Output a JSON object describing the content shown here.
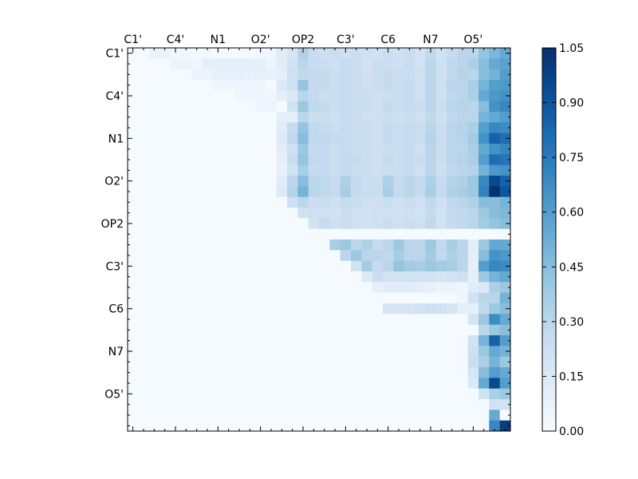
{
  "chart_data": {
    "type": "heatmap",
    "title": "",
    "xlabel": "",
    "ylabel": "",
    "grid": false,
    "x_ticks_position": "top",
    "categories": [
      "C1'",
      "C4'",
      "N1",
      "O2'",
      "OP2",
      "C3'",
      "C6",
      "N7",
      "O5'"
    ],
    "y_categories": [
      "C1'",
      "C4'",
      "N1",
      "O2'",
      "OP2",
      "C3'",
      "C6",
      "N7",
      "O5'"
    ],
    "n_rows": 36,
    "n_cols": 36,
    "label_every": 4,
    "colormap": "Blues",
    "colormap_stops": [
      "#f7fbff",
      "#deebf7",
      "#c6dbef",
      "#9ecae1",
      "#6baed6",
      "#4292c6",
      "#2171b5",
      "#08519c",
      "#08306b"
    ],
    "colorbar": {
      "min": 0.0,
      "max": 1.05,
      "ticks": [
        "1.05",
        "0.90",
        "0.75",
        "0.60",
        "0.45",
        "0.30",
        "0.15",
        "0.00"
      ],
      "tick_values": [
        1.05,
        0.9,
        0.75,
        0.6,
        0.45,
        0.3,
        0.15,
        0.0
      ],
      "placement": "right"
    },
    "matrix": [
      [
        0.01,
        0.01,
        0.06,
        0.06,
        0.03,
        0.03,
        0.02,
        0.03,
        0.02,
        0.02,
        0.02,
        0.02,
        0.04,
        0.04,
        0.12,
        0.18,
        0.34,
        0.25,
        0.23,
        0.24,
        0.22,
        0.24,
        0.22,
        0.2,
        0.24,
        0.22,
        0.25,
        0.2,
        0.28,
        0.2,
        0.26,
        0.3,
        0.3,
        0.42,
        0.48,
        0.55
      ],
      [
        0.01,
        0.01,
        0.01,
        0.01,
        0.06,
        0.06,
        0.04,
        0.1,
        0.1,
        0.1,
        0.1,
        0.1,
        0.1,
        0.06,
        0.12,
        0.2,
        0.3,
        0.25,
        0.24,
        0.22,
        0.26,
        0.24,
        0.2,
        0.24,
        0.24,
        0.22,
        0.24,
        0.2,
        0.3,
        0.22,
        0.28,
        0.3,
        0.35,
        0.45,
        0.55,
        0.58
      ],
      [
        0.01,
        0.01,
        0.01,
        0.01,
        0.01,
        0.01,
        0.06,
        0.06,
        0.1,
        0.1,
        0.1,
        0.08,
        0.1,
        0.08,
        0.1,
        0.22,
        0.28,
        0.26,
        0.26,
        0.24,
        0.26,
        0.24,
        0.22,
        0.24,
        0.26,
        0.24,
        0.25,
        0.22,
        0.3,
        0.22,
        0.28,
        0.32,
        0.3,
        0.45,
        0.5,
        0.6
      ],
      [
        0.01,
        0.01,
        0.01,
        0.01,
        0.01,
        0.01,
        0.01,
        0.01,
        0.04,
        0.04,
        0.04,
        0.04,
        0.04,
        0.02,
        0.15,
        0.22,
        0.42,
        0.26,
        0.26,
        0.24,
        0.26,
        0.24,
        0.22,
        0.24,
        0.26,
        0.24,
        0.26,
        0.22,
        0.3,
        0.22,
        0.3,
        0.3,
        0.35,
        0.5,
        0.6,
        0.62
      ],
      [
        0.01,
        0.01,
        0.01,
        0.01,
        0.01,
        0.01,
        0.01,
        0.01,
        0.01,
        0.01,
        0.04,
        0.04,
        0.04,
        0.04,
        0.1,
        0.15,
        0.3,
        0.26,
        0.24,
        0.24,
        0.26,
        0.24,
        0.24,
        0.22,
        0.24,
        0.24,
        0.26,
        0.22,
        0.3,
        0.22,
        0.28,
        0.3,
        0.35,
        0.55,
        0.62,
        0.65
      ],
      [
        0.01,
        0.01,
        0.01,
        0.01,
        0.01,
        0.01,
        0.01,
        0.01,
        0.01,
        0.01,
        0.01,
        0.01,
        0.04,
        0.05,
        0.01,
        0.2,
        0.4,
        0.28,
        0.26,
        0.24,
        0.26,
        0.24,
        0.24,
        0.22,
        0.26,
        0.24,
        0.26,
        0.24,
        0.3,
        0.24,
        0.3,
        0.32,
        0.3,
        0.45,
        0.65,
        0.7
      ],
      [
        0.01,
        0.01,
        0.01,
        0.01,
        0.01,
        0.01,
        0.01,
        0.01,
        0.01,
        0.01,
        0.01,
        0.01,
        0.01,
        0.01,
        0.1,
        0.1,
        0.3,
        0.24,
        0.24,
        0.22,
        0.26,
        0.24,
        0.22,
        0.22,
        0.24,
        0.22,
        0.24,
        0.22,
        0.28,
        0.22,
        0.28,
        0.3,
        0.3,
        0.5,
        0.55,
        0.6
      ],
      [
        0.01,
        0.01,
        0.01,
        0.01,
        0.01,
        0.01,
        0.01,
        0.01,
        0.01,
        0.01,
        0.01,
        0.01,
        0.01,
        0.01,
        0.12,
        0.26,
        0.42,
        0.28,
        0.26,
        0.24,
        0.26,
        0.24,
        0.24,
        0.22,
        0.26,
        0.24,
        0.26,
        0.24,
        0.3,
        0.24,
        0.3,
        0.32,
        0.35,
        0.6,
        0.7,
        0.68
      ],
      [
        0.01,
        0.01,
        0.01,
        0.01,
        0.01,
        0.01,
        0.01,
        0.01,
        0.01,
        0.01,
        0.01,
        0.01,
        0.01,
        0.01,
        0.14,
        0.28,
        0.45,
        0.28,
        0.28,
        0.26,
        0.26,
        0.24,
        0.24,
        0.22,
        0.26,
        0.24,
        0.26,
        0.24,
        0.32,
        0.24,
        0.3,
        0.32,
        0.38,
        0.65,
        0.85,
        0.8
      ],
      [
        0.01,
        0.01,
        0.01,
        0.01,
        0.01,
        0.01,
        0.01,
        0.01,
        0.01,
        0.01,
        0.01,
        0.01,
        0.01,
        0.01,
        0.12,
        0.22,
        0.4,
        0.26,
        0.26,
        0.24,
        0.26,
        0.24,
        0.24,
        0.22,
        0.24,
        0.24,
        0.26,
        0.22,
        0.3,
        0.24,
        0.3,
        0.3,
        0.35,
        0.55,
        0.65,
        0.7
      ],
      [
        0.01,
        0.01,
        0.01,
        0.01,
        0.01,
        0.01,
        0.01,
        0.01,
        0.01,
        0.01,
        0.01,
        0.01,
        0.01,
        0.01,
        0.1,
        0.24,
        0.42,
        0.28,
        0.26,
        0.24,
        0.26,
        0.26,
        0.24,
        0.22,
        0.26,
        0.24,
        0.26,
        0.24,
        0.3,
        0.24,
        0.3,
        0.32,
        0.35,
        0.6,
        0.8,
        0.78
      ],
      [
        0.01,
        0.01,
        0.01,
        0.01,
        0.01,
        0.01,
        0.01,
        0.01,
        0.01,
        0.01,
        0.01,
        0.01,
        0.01,
        0.01,
        0.08,
        0.2,
        0.36,
        0.26,
        0.26,
        0.24,
        0.26,
        0.24,
        0.24,
        0.22,
        0.24,
        0.24,
        0.26,
        0.22,
        0.3,
        0.22,
        0.28,
        0.3,
        0.32,
        0.5,
        0.62,
        0.65
      ],
      [
        0.01,
        0.01,
        0.01,
        0.01,
        0.01,
        0.01,
        0.01,
        0.01,
        0.01,
        0.01,
        0.01,
        0.01,
        0.01,
        0.01,
        0.12,
        0.3,
        0.45,
        0.3,
        0.28,
        0.26,
        0.34,
        0.26,
        0.24,
        0.24,
        0.34,
        0.26,
        0.3,
        0.26,
        0.34,
        0.26,
        0.32,
        0.34,
        0.4,
        0.7,
        0.95,
        0.85
      ],
      [
        0.01,
        0.01,
        0.01,
        0.01,
        0.01,
        0.01,
        0.01,
        0.01,
        0.01,
        0.01,
        0.01,
        0.01,
        0.01,
        0.01,
        0.14,
        0.32,
        0.5,
        0.3,
        0.28,
        0.26,
        0.36,
        0.26,
        0.24,
        0.24,
        0.36,
        0.26,
        0.3,
        0.26,
        0.36,
        0.26,
        0.34,
        0.36,
        0.4,
        0.72,
        1.05,
        0.9
      ],
      [
        0.01,
        0.01,
        0.01,
        0.01,
        0.01,
        0.01,
        0.01,
        0.01,
        0.01,
        0.01,
        0.01,
        0.01,
        0.01,
        0.01,
        0.01,
        0.22,
        0.3,
        0.24,
        0.24,
        0.22,
        0.26,
        0.24,
        0.22,
        0.22,
        0.24,
        0.22,
        0.24,
        0.22,
        0.28,
        0.22,
        0.28,
        0.3,
        0.34,
        0.45,
        0.45,
        0.5
      ],
      [
        0.01,
        0.01,
        0.01,
        0.01,
        0.01,
        0.01,
        0.01,
        0.01,
        0.01,
        0.01,
        0.01,
        0.01,
        0.01,
        0.01,
        0.01,
        0.01,
        0.2,
        0.22,
        0.22,
        0.2,
        0.24,
        0.22,
        0.2,
        0.22,
        0.22,
        0.2,
        0.22,
        0.2,
        0.26,
        0.2,
        0.26,
        0.28,
        0.3,
        0.4,
        0.45,
        0.48
      ],
      [
        0.01,
        0.01,
        0.01,
        0.01,
        0.01,
        0.01,
        0.01,
        0.01,
        0.01,
        0.01,
        0.01,
        0.01,
        0.01,
        0.01,
        0.01,
        0.01,
        0.01,
        0.2,
        0.26,
        0.22,
        0.24,
        0.22,
        0.2,
        0.22,
        0.24,
        0.22,
        0.24,
        0.22,
        0.28,
        0.2,
        0.26,
        0.28,
        0.3,
        0.38,
        0.42,
        0.45
      ],
      [
        0.01,
        0.01,
        0.01,
        0.01,
        0.01,
        0.01,
        0.01,
        0.01,
        0.01,
        0.01,
        0.01,
        0.01,
        0.01,
        0.01,
        0.01,
        0.01,
        0.01,
        0.01,
        0.01,
        0.01,
        0.01,
        0.01,
        0.01,
        0.01,
        0.01,
        0.01,
        0.01,
        0.01,
        0.01,
        0.01,
        0.01,
        0.01,
        0.01,
        0.01,
        0.01,
        0.01
      ],
      [
        0.01,
        0.01,
        0.01,
        0.01,
        0.01,
        0.01,
        0.01,
        0.01,
        0.01,
        0.01,
        0.01,
        0.01,
        0.01,
        0.01,
        0.01,
        0.01,
        0.01,
        0.01,
        0.01,
        0.36,
        0.4,
        0.3,
        0.34,
        0.26,
        0.3,
        0.4,
        0.3,
        0.3,
        0.4,
        0.28,
        0.36,
        0.3,
        0.1,
        0.4,
        0.55,
        0.55
      ],
      [
        0.01,
        0.01,
        0.01,
        0.01,
        0.01,
        0.01,
        0.01,
        0.01,
        0.01,
        0.01,
        0.01,
        0.01,
        0.01,
        0.01,
        0.01,
        0.01,
        0.01,
        0.01,
        0.01,
        0.01,
        0.3,
        0.4,
        0.3,
        0.3,
        0.28,
        0.36,
        0.3,
        0.3,
        0.38,
        0.28,
        0.34,
        0.3,
        0.1,
        0.45,
        0.65,
        0.62
      ],
      [
        0.01,
        0.01,
        0.01,
        0.01,
        0.01,
        0.01,
        0.01,
        0.01,
        0.01,
        0.01,
        0.01,
        0.01,
        0.01,
        0.01,
        0.01,
        0.01,
        0.01,
        0.01,
        0.01,
        0.01,
        0.01,
        0.2,
        0.38,
        0.26,
        0.3,
        0.42,
        0.38,
        0.36,
        0.4,
        0.38,
        0.36,
        0.3,
        0.1,
        0.6,
        0.7,
        0.68
      ],
      [
        0.01,
        0.01,
        0.01,
        0.01,
        0.01,
        0.01,
        0.01,
        0.01,
        0.01,
        0.01,
        0.01,
        0.01,
        0.01,
        0.01,
        0.01,
        0.01,
        0.01,
        0.01,
        0.01,
        0.01,
        0.01,
        0.01,
        0.14,
        0.24,
        0.2,
        0.2,
        0.2,
        0.2,
        0.2,
        0.18,
        0.2,
        0.22,
        0.1,
        0.4,
        0.5,
        0.55
      ],
      [
        0.01,
        0.01,
        0.01,
        0.01,
        0.01,
        0.01,
        0.01,
        0.01,
        0.01,
        0.01,
        0.01,
        0.01,
        0.01,
        0.01,
        0.01,
        0.01,
        0.01,
        0.01,
        0.01,
        0.01,
        0.01,
        0.01,
        0.01,
        0.1,
        0.12,
        0.12,
        0.12,
        0.1,
        0.08,
        0.06,
        0.06,
        0.04,
        0.12,
        0.15,
        0.35,
        0.4
      ],
      [
        0.01,
        0.01,
        0.01,
        0.01,
        0.01,
        0.01,
        0.01,
        0.01,
        0.01,
        0.01,
        0.01,
        0.01,
        0.01,
        0.01,
        0.01,
        0.01,
        0.01,
        0.01,
        0.01,
        0.01,
        0.01,
        0.01,
        0.01,
        0.01,
        0.01,
        0.01,
        0.01,
        0.01,
        0.01,
        0.01,
        0.01,
        0.04,
        0.2,
        0.3,
        0.3,
        0.5
      ],
      [
        0.01,
        0.01,
        0.01,
        0.01,
        0.01,
        0.01,
        0.01,
        0.01,
        0.01,
        0.01,
        0.01,
        0.01,
        0.01,
        0.01,
        0.01,
        0.01,
        0.01,
        0.01,
        0.01,
        0.01,
        0.01,
        0.01,
        0.01,
        0.01,
        0.18,
        0.18,
        0.18,
        0.2,
        0.22,
        0.2,
        0.18,
        0.1,
        0.1,
        0.28,
        0.4,
        0.45
      ],
      [
        0.01,
        0.01,
        0.01,
        0.01,
        0.01,
        0.01,
        0.01,
        0.01,
        0.01,
        0.01,
        0.01,
        0.01,
        0.01,
        0.01,
        0.01,
        0.01,
        0.01,
        0.01,
        0.01,
        0.01,
        0.01,
        0.01,
        0.01,
        0.01,
        0.01,
        0.01,
        0.01,
        0.01,
        0.01,
        0.01,
        0.01,
        0.01,
        0.18,
        0.4,
        0.68,
        0.55
      ],
      [
        0.01,
        0.01,
        0.01,
        0.01,
        0.01,
        0.01,
        0.01,
        0.01,
        0.01,
        0.01,
        0.01,
        0.01,
        0.01,
        0.01,
        0.01,
        0.01,
        0.01,
        0.01,
        0.01,
        0.01,
        0.01,
        0.01,
        0.01,
        0.01,
        0.01,
        0.01,
        0.01,
        0.01,
        0.01,
        0.01,
        0.01,
        0.01,
        0.01,
        0.3,
        0.4,
        0.45
      ],
      [
        0.01,
        0.01,
        0.01,
        0.01,
        0.01,
        0.01,
        0.01,
        0.01,
        0.01,
        0.01,
        0.01,
        0.01,
        0.01,
        0.01,
        0.01,
        0.01,
        0.01,
        0.01,
        0.01,
        0.01,
        0.01,
        0.01,
        0.01,
        0.01,
        0.01,
        0.01,
        0.01,
        0.01,
        0.01,
        0.01,
        0.01,
        0.02,
        0.2,
        0.5,
        0.85,
        0.6
      ],
      [
        0.01,
        0.01,
        0.01,
        0.01,
        0.01,
        0.01,
        0.01,
        0.01,
        0.01,
        0.01,
        0.01,
        0.01,
        0.01,
        0.01,
        0.01,
        0.01,
        0.01,
        0.01,
        0.01,
        0.01,
        0.01,
        0.01,
        0.01,
        0.01,
        0.01,
        0.01,
        0.01,
        0.01,
        0.01,
        0.01,
        0.01,
        0.02,
        0.22,
        0.4,
        0.55,
        0.5
      ],
      [
        0.01,
        0.01,
        0.01,
        0.01,
        0.01,
        0.01,
        0.01,
        0.01,
        0.01,
        0.01,
        0.01,
        0.01,
        0.01,
        0.01,
        0.01,
        0.01,
        0.01,
        0.01,
        0.01,
        0.01,
        0.01,
        0.01,
        0.01,
        0.01,
        0.01,
        0.01,
        0.01,
        0.01,
        0.01,
        0.01,
        0.01,
        0.02,
        0.25,
        0.35,
        0.5,
        0.4
      ],
      [
        0.01,
        0.01,
        0.01,
        0.01,
        0.01,
        0.01,
        0.01,
        0.01,
        0.01,
        0.01,
        0.01,
        0.01,
        0.01,
        0.01,
        0.01,
        0.01,
        0.01,
        0.01,
        0.01,
        0.01,
        0.01,
        0.01,
        0.01,
        0.01,
        0.01,
        0.01,
        0.01,
        0.01,
        0.01,
        0.01,
        0.01,
        0.02,
        0.18,
        0.45,
        0.6,
        0.55
      ],
      [
        0.01,
        0.01,
        0.01,
        0.01,
        0.01,
        0.01,
        0.01,
        0.01,
        0.01,
        0.01,
        0.01,
        0.01,
        0.01,
        0.01,
        0.01,
        0.01,
        0.01,
        0.01,
        0.01,
        0.01,
        0.01,
        0.01,
        0.01,
        0.01,
        0.01,
        0.01,
        0.01,
        0.01,
        0.01,
        0.01,
        0.01,
        0.01,
        0.15,
        0.55,
        0.95,
        0.6
      ],
      [
        0.01,
        0.01,
        0.01,
        0.01,
        0.01,
        0.01,
        0.01,
        0.01,
        0.01,
        0.01,
        0.01,
        0.01,
        0.01,
        0.01,
        0.01,
        0.01,
        0.01,
        0.01,
        0.01,
        0.01,
        0.01,
        0.01,
        0.01,
        0.01,
        0.01,
        0.01,
        0.01,
        0.01,
        0.01,
        0.01,
        0.01,
        0.01,
        0.01,
        0.2,
        0.35,
        0.4
      ],
      [
        0.01,
        0.01,
        0.01,
        0.01,
        0.01,
        0.01,
        0.01,
        0.01,
        0.01,
        0.01,
        0.01,
        0.01,
        0.01,
        0.01,
        0.01,
        0.01,
        0.01,
        0.01,
        0.01,
        0.01,
        0.01,
        0.01,
        0.01,
        0.01,
        0.01,
        0.01,
        0.01,
        0.01,
        0.01,
        0.01,
        0.01,
        0.01,
        0.01,
        0.01,
        0.2,
        0.2
      ],
      [
        0.01,
        0.01,
        0.01,
        0.01,
        0.01,
        0.01,
        0.01,
        0.01,
        0.01,
        0.01,
        0.01,
        0.01,
        0.01,
        0.01,
        0.01,
        0.01,
        0.01,
        0.01,
        0.01,
        0.01,
        0.01,
        0.01,
        0.01,
        0.01,
        0.01,
        0.01,
        0.01,
        0.01,
        0.01,
        0.01,
        0.01,
        0.01,
        0.01,
        0.01,
        0.55,
        0.01
      ],
      [
        0.01,
        0.01,
        0.01,
        0.01,
        0.01,
        0.01,
        0.01,
        0.01,
        0.01,
        0.01,
        0.01,
        0.01,
        0.01,
        0.01,
        0.01,
        0.01,
        0.01,
        0.01,
        0.01,
        0.01,
        0.01,
        0.01,
        0.01,
        0.01,
        0.01,
        0.01,
        0.01,
        0.01,
        0.01,
        0.01,
        0.01,
        0.01,
        0.01,
        0.01,
        0.7,
        1.0
      ]
    ]
  }
}
